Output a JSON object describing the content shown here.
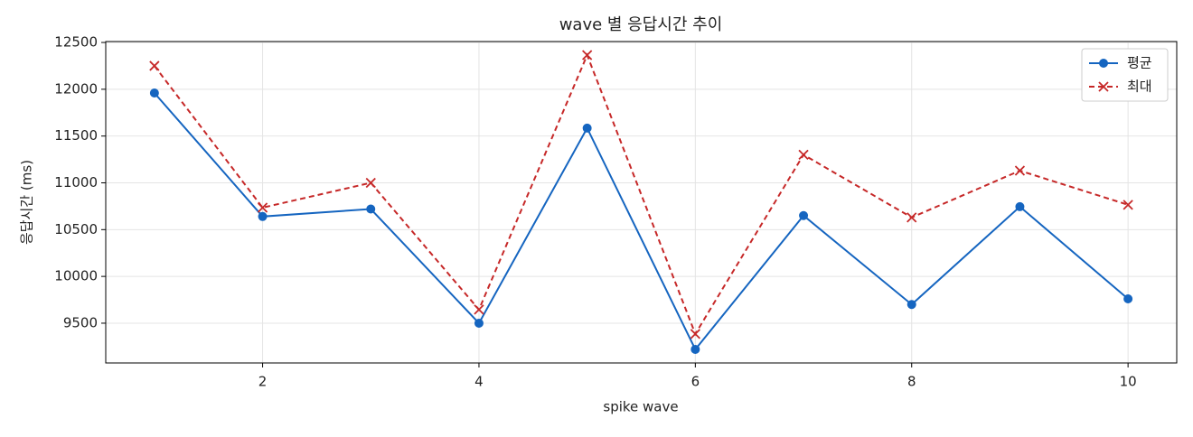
{
  "chart_data": {
    "type": "line",
    "title": "wave 별 응답시간 추이",
    "xlabel": "spike wave",
    "ylabel": "응답시간 (ms)",
    "x": [
      1,
      2,
      3,
      4,
      5,
      6,
      7,
      8,
      9,
      10
    ],
    "series": [
      {
        "name": "평균",
        "color": "#1565c0",
        "marker": "o",
        "dash": false,
        "values": [
          11960,
          10640,
          10720,
          9500,
          11585,
          9220,
          10650,
          9700,
          10745,
          9760
        ]
      },
      {
        "name": "최대",
        "color": "#c62828",
        "marker": "x",
        "dash": true,
        "values": [
          12250,
          10735,
          11000,
          9645,
          12365,
          9385,
          11300,
          10630,
          11130,
          10765
        ]
      }
    ],
    "xlim": [
      0.55,
      10.45
    ],
    "xticks": [
      2,
      4,
      6,
      8,
      10
    ],
    "ylim": [
      9075,
      12510
    ],
    "yticks": [
      9500,
      10000,
      10500,
      11000,
      11500,
      12000,
      12500
    ],
    "grid": true,
    "legend": "upper right"
  }
}
